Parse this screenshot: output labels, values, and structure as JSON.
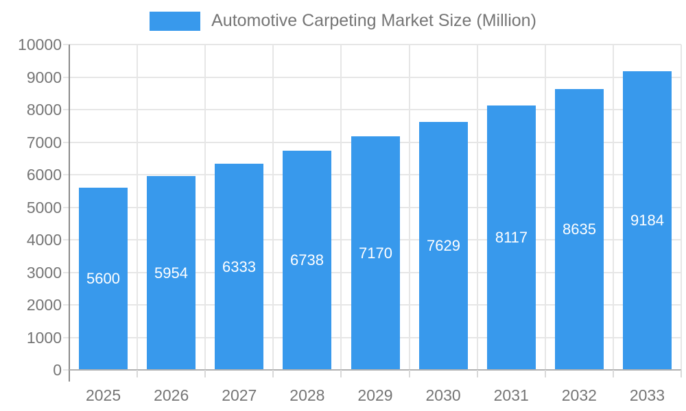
{
  "legend": {
    "label": "Automotive Carpeting Market Size (Million)"
  },
  "chart_data": {
    "type": "bar",
    "title": "Automotive Carpeting Market Size (Million)",
    "categories": [
      "2025",
      "2026",
      "2027",
      "2028",
      "2029",
      "2030",
      "2031",
      "2032",
      "2033"
    ],
    "values": [
      5600,
      5954,
      6333,
      6738,
      7170,
      7629,
      8117,
      8635,
      9184
    ],
    "xlabel": "",
    "ylabel": "",
    "ylim": [
      0,
      10000
    ],
    "ytick_step": 1000,
    "yticks": [
      0,
      1000,
      2000,
      3000,
      4000,
      5000,
      6000,
      7000,
      8000,
      9000,
      10000
    ],
    "grid": true,
    "legend_position": "top",
    "value_labels": "inside-center",
    "colors": {
      "bar": "#3899ec",
      "grid": "#e6e6e6",
      "y_axis_line": "#898989",
      "baseline": "#b0b0b0",
      "tick": "#d9d9d9",
      "tick_label": "#757575",
      "value_label": "#ffffff",
      "legend_text": "#757575"
    }
  }
}
